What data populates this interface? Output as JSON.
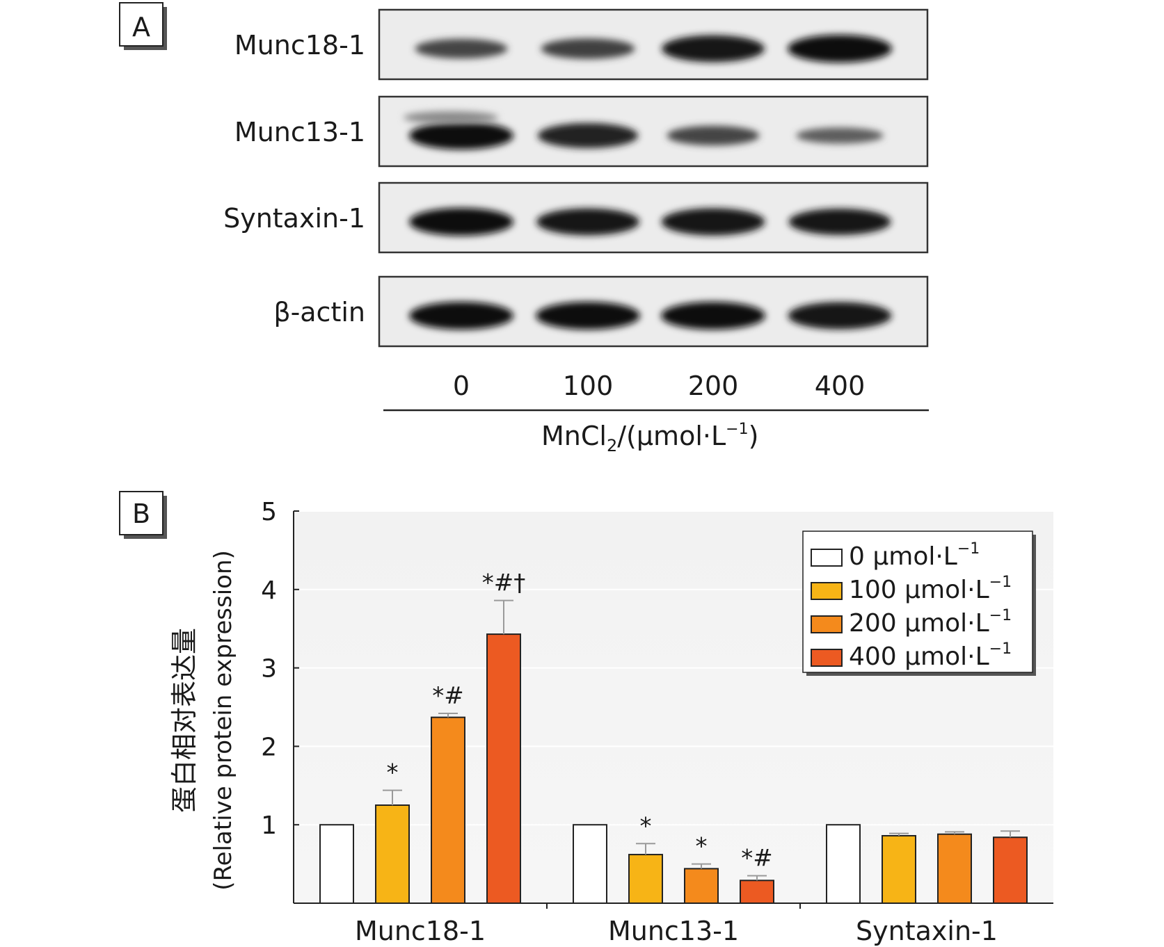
{
  "panel_a": {
    "label": "A",
    "blots": [
      {
        "name": "Munc18-1",
        "intensity": [
          0.55,
          0.6,
          0.95,
          1.0
        ],
        "upper_band": [
          0,
          0,
          0,
          0
        ]
      },
      {
        "name": "Munc13-1",
        "intensity": [
          1.0,
          0.85,
          0.55,
          0.35
        ],
        "upper_band": [
          0.35,
          0,
          0,
          0
        ]
      },
      {
        "name": "Syntaxin-1",
        "intensity": [
          1.0,
          0.95,
          0.97,
          0.92
        ],
        "upper_band": [
          0,
          0,
          0,
          0
        ]
      },
      {
        "name": "β-actin",
        "intensity": [
          1.0,
          1.0,
          1.0,
          0.97
        ],
        "upper_band": [
          0,
          0,
          0,
          0
        ]
      }
    ],
    "lanes": [
      "0",
      "100",
      "200",
      "400"
    ],
    "xlabel": {
      "main": "MnCl",
      "sub": "2",
      "rest": "/(μmol·L",
      "sup": "−1",
      "close": ")"
    }
  },
  "chart_data": {
    "type": "bar",
    "panel_label": "B",
    "categories": [
      "Munc18-1",
      "Munc13-1",
      "Syntaxin-1"
    ],
    "ylabel_cn": "蛋白相对表达量",
    "ylabel_en": "(Relative protein expression)",
    "ylim": [
      0,
      5
    ],
    "yticks": [
      "1",
      "2",
      "3",
      "4",
      "5"
    ],
    "grid": true,
    "legend_position": "top-right",
    "series": [
      {
        "name": "0 μmol·L",
        "sup": "−1",
        "color": "#ffffff",
        "values": [
          1.0,
          1.0,
          1.0
        ],
        "errors": [
          0,
          0,
          0
        ],
        "annotations": [
          "",
          "",
          ""
        ]
      },
      {
        "name": "100 μmol·L",
        "sup": "−1",
        "color": "#f7b416",
        "values": [
          1.25,
          0.62,
          0.86
        ],
        "errors": [
          0.19,
          0.14,
          0.03
        ],
        "annotations": [
          "*",
          "*",
          ""
        ]
      },
      {
        "name": "200 μmol·L",
        "sup": "−1",
        "color": "#f48a1c",
        "values": [
          2.37,
          0.44,
          0.88
        ],
        "errors": [
          0.05,
          0.06,
          0.03
        ],
        "annotations": [
          "*#",
          "*",
          ""
        ]
      },
      {
        "name": "400 μmol·L",
        "sup": "−1",
        "color": "#ec5a22",
        "values": [
          3.43,
          0.29,
          0.84
        ],
        "errors": [
          0.43,
          0.06,
          0.08
        ],
        "annotations": [
          "*#†",
          "*#",
          ""
        ]
      }
    ]
  }
}
